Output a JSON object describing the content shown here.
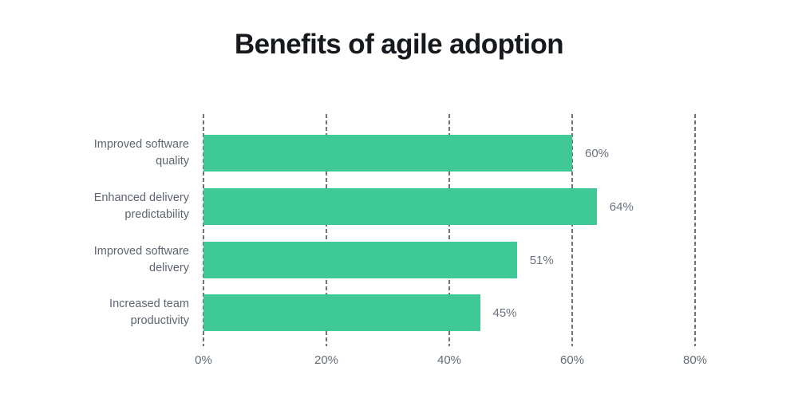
{
  "title": "Benefits of agile adoption",
  "chart_data": {
    "type": "bar",
    "orientation": "horizontal",
    "title": "Benefits of agile adoption",
    "categories": [
      "Improved software quality",
      "Enhanced delivery predictability",
      "Improved software delivery",
      "Increased team productivity"
    ],
    "values": [
      60,
      64,
      51,
      45
    ],
    "value_labels": [
      "60%",
      "64%",
      "51%",
      "45%"
    ],
    "x_ticks": [
      0,
      20,
      40,
      60,
      80
    ],
    "x_tick_labels": [
      "0%",
      "20%",
      "40%",
      "60%",
      "80%"
    ],
    "xlim": [
      0,
      80
    ],
    "xlabel": "",
    "ylabel": "",
    "legend": "none",
    "grid": "dashed-vertical",
    "colors": {
      "bar": "#3fc996",
      "gridline": "#6d727a",
      "title_text": "#16191e",
      "category_text": "#5d6570",
      "value_text": "#6a7280",
      "tick_text": "#636b76",
      "background": "#ffffff"
    }
  }
}
